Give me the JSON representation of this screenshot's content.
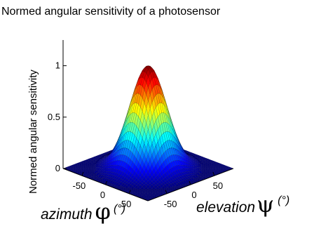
{
  "chart_data": {
    "type": "surface",
    "title": "Normed angular sensitivity of a photosensor",
    "zlabel": "Normed angular sensitivity",
    "xlabel": {
      "name": "azimuth",
      "symbol": "φ",
      "unit": "(°)"
    },
    "ylabel": {
      "name": "elevation",
      "symbol": "ψ",
      "unit": "(°)"
    },
    "x_range": [
      -90,
      90
    ],
    "y_range": [
      -90,
      90
    ],
    "z_range": [
      0,
      1
    ],
    "x_ticks": [
      -50,
      0,
      50
    ],
    "y_ticks": [
      -50,
      0,
      50
    ],
    "z_ticks": [
      0,
      0.5,
      1
    ],
    "x_tick_labels": [
      "-50",
      "0",
      "50"
    ],
    "y_tick_labels": [
      "-50",
      "0",
      "50"
    ],
    "z_tick_labels": [
      "0",
      "0.5",
      "1"
    ],
    "surface": {
      "function": "gaussian",
      "center": [
        0,
        0
      ],
      "peak": 1,
      "sigma_deg": 28,
      "support_radius_deg": 80,
      "colormap": "jet",
      "grid": "on"
    }
  }
}
